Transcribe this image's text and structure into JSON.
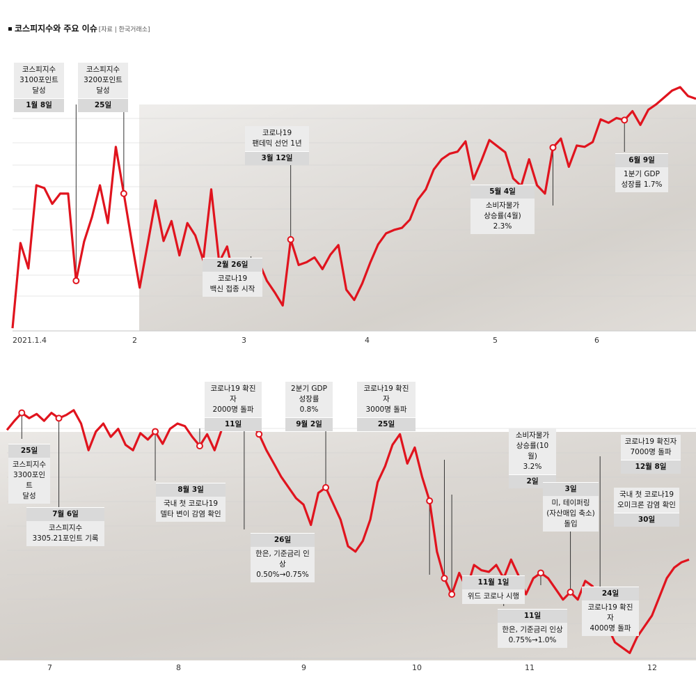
{
  "header": {
    "title": "코스피지수와 주요 이슈",
    "source": "[자료 | 한국거래소]"
  },
  "colors": {
    "line": "#e0141e",
    "grid": "#cfcfcf",
    "photo_bg": "#d9d6d2"
  },
  "chart_data": [
    {
      "type": "line",
      "title": "",
      "series": [
        {
          "name": "",
          "values": [
            2944,
            3068,
            3031,
            3152,
            3148,
            3125,
            3140,
            3140,
            3013,
            3070,
            3106,
            3152,
            3097,
            3208,
            3140,
            3070,
            3003,
            3066,
            3130,
            3071,
            3100,
            3050,
            3097,
            3079,
            3043,
            3146,
            3040,
            3063,
            3009,
            3010,
            2998,
            3040,
            3013,
            2996,
            2977,
            3073,
            3036,
            3040,
            3047,
            3030,
            3051,
            3065,
            3000,
            2985,
            3009,
            3039,
            3066,
            3082,
            3087,
            3090,
            3102,
            3131,
            3146,
            3175,
            3190,
            3198,
            3201,
            3216,
            3161,
            3188,
            3218,
            3209,
            3200,
            3162,
            3151,
            3190,
            3152,
            3140,
            3207,
            3220,
            3179,
            3210,
            3208,
            3215,
            3248,
            3243,
            3250,
            3247,
            3260,
            3240,
            3262,
            3270,
            3280,
            3290,
            3295,
            3282,
            3278
          ]
        }
      ],
      "x_tick_labels": [
        "2021.1.4",
        "2",
        "3",
        "4",
        "5",
        "6"
      ],
      "annotations": [
        {
          "label": "코스피지수\n3100포인트\n달성",
          "date": "1월 8일"
        },
        {
          "label": "코스피지수\n3200포인트\n달성",
          "date": "25일"
        },
        {
          "label": "코로나19\n팬데믹 선언 1년",
          "date": "3월 12일"
        },
        {
          "label": "코로나19\n백신 접종 시작",
          "date": "2월 26일"
        },
        {
          "label": "소비자물가\n상승률(4월) 2.3%",
          "date": "5월 4일"
        },
        {
          "label": "1분기 GDP\n성장률 1.7%",
          "date": "6월 9일"
        }
      ]
    },
    {
      "type": "line",
      "title": "",
      "series": [
        {
          "name": "",
          "values": [
            3268,
            3285,
            3300,
            3290,
            3298,
            3285,
            3300,
            3290,
            3296,
            3305,
            3280,
            3230,
            3265,
            3280,
            3255,
            3270,
            3240,
            3230,
            3262,
            3250,
            3265,
            3242,
            3270,
            3280,
            3275,
            3255,
            3238,
            3260,
            3230,
            3270,
            3280,
            3300,
            3295,
            3280,
            3260,
            3230,
            3205,
            3180,
            3160,
            3140,
            3128,
            3090,
            3150,
            3160,
            3130,
            3100,
            3050,
            3040,
            3060,
            3100,
            3170,
            3200,
            3240,
            3260,
            3205,
            3235,
            3180,
            3135,
            3040,
            2990,
            2960,
            3000,
            2970,
            3015,
            3005,
            3002,
            3015,
            2990,
            3025,
            2995,
            2960,
            2990,
            3000,
            2990,
            2970,
            2950,
            2964,
            2950,
            2985,
            2975,
            2920,
            2900,
            2870,
            2860,
            2850,
            2880,
            2900,
            2920,
            2955,
            2990,
            3010,
            3020,
            3025
          ]
        }
      ],
      "x_tick_labels": [
        "7",
        "8",
        "9",
        "10",
        "11",
        "12"
      ],
      "annotations": [
        {
          "label": "코스피지수\n3300포인트\n달성",
          "date": "25일"
        },
        {
          "label": "코스피지수\n3305.21포인트 기록",
          "date": "7월 6일"
        },
        {
          "label": "국내 첫 코로나19\n델타 변이 감염 확인",
          "date": "8월 3일"
        },
        {
          "label": "코로나19 확진자\n2000명 돌파",
          "date": "11일"
        },
        {
          "label": "한은, 기준금리 인상\n0.50%→0.75%",
          "date": "26일"
        },
        {
          "label": "2분기 GDP\n성장률 0.8%",
          "date": "9월 2일"
        },
        {
          "label": "코로나19 확진자\n3000명 돌파",
          "date": "25일"
        },
        {
          "label": "위드 코로나 시행",
          "date": "11월 1일"
        },
        {
          "label": "소비자물가\n상승률(10월)\n3.2%",
          "date": "2일"
        },
        {
          "label": "미, 테이퍼링\n(자산매입 축소)\n돌입",
          "date": "3일"
        },
        {
          "label": "한은, 기준금리 인상\n0.75%→1.0%",
          "date": "11일"
        },
        {
          "label": "코로나19 확진자\n4000명 돌파",
          "date": "24일"
        },
        {
          "label": "국내 첫 코로나19\n오미크론 감염 확인",
          "date": "30일"
        },
        {
          "label": "코로나19 확진자\n7000명 돌파",
          "date": "12월 8일"
        }
      ]
    }
  ]
}
